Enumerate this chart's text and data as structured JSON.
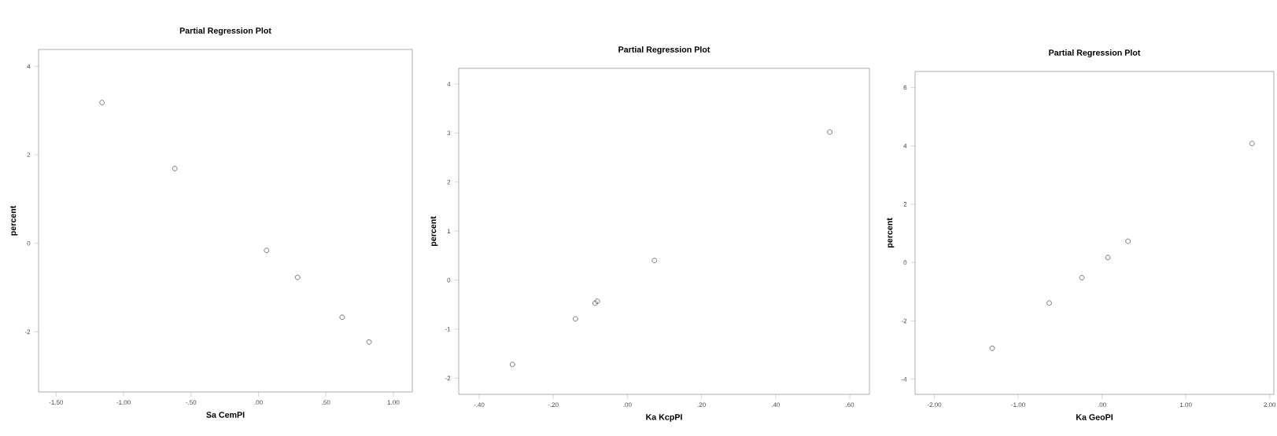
{
  "chart_data": [
    {
      "type": "scatter",
      "title": "Partial Regression Plot",
      "xlabel": "Sa CemPI",
      "ylabel": "percent",
      "marker": "circle",
      "color": "#555555",
      "x": [
        -1.16,
        -0.62,
        0.06,
        0.29,
        0.62,
        0.82
      ],
      "values": [
        3.18,
        1.69,
        -0.16,
        -0.77,
        -1.67,
        -2.23
      ],
      "xlim": [
        -1.63,
        1.14
      ],
      "ylim": [
        -3.36,
        4.38
      ],
      "xticks": [
        {
          "value": -1.5,
          "label": "-1.50"
        },
        {
          "value": -1.0,
          "label": "-1.00"
        },
        {
          "value": -0.5,
          "label": "-.50"
        },
        {
          "value": 0,
          "label": ".00"
        },
        {
          "value": 0.5,
          "label": ".50"
        },
        {
          "value": 1.0,
          "label": "1.00"
        }
      ],
      "yticks": [
        4,
        2,
        0,
        -2
      ]
    },
    {
      "type": "scatter",
      "title": "Partial Regression Plot",
      "xlabel": "Ka KcpPI",
      "ylabel": "percent",
      "marker": "circle",
      "color": "#555555",
      "x": [
        -0.31,
        -0.14,
        -0.087,
        -0.081,
        0.073,
        0.546
      ],
      "values": [
        -1.72,
        -0.79,
        -0.47,
        -0.43,
        0.4,
        3.02
      ],
      "xlim": [
        -0.455,
        0.653
      ],
      "ylim": [
        -2.33,
        4.32
      ],
      "xticks": [
        {
          "value": -0.4,
          "label": "-.40"
        },
        {
          "value": -0.2,
          "label": "-.20"
        },
        {
          "value": 0,
          "label": ".00"
        },
        {
          "value": 0.2,
          "label": ".20"
        },
        {
          "value": 0.4,
          "label": ".40"
        },
        {
          "value": 0.6,
          "label": ".60"
        }
      ],
      "yticks": [
        4,
        3,
        2,
        1,
        0,
        -1,
        -2
      ]
    },
    {
      "type": "scatter",
      "title": "Partial Regression Plot",
      "xlabel": "Ka GeoPI",
      "ylabel": "percent",
      "marker": "circle",
      "color": "#555555",
      "x": [
        -1.31,
        -0.63,
        -0.24,
        0.07,
        0.31,
        1.79
      ],
      "values": [
        -2.94,
        -1.39,
        -0.52,
        0.17,
        0.73,
        4.08
      ],
      "xlim": [
        -2.23,
        2.05
      ],
      "ylim": [
        -4.52,
        6.55
      ],
      "xticks": [
        {
          "value": -2.0,
          "label": "-2.00"
        },
        {
          "value": -1.0,
          "label": "-1.00"
        },
        {
          "value": 0,
          "label": ".00"
        },
        {
          "value": 1.0,
          "label": "1.00"
        },
        {
          "value": 2.0,
          "label": "2.00"
        }
      ],
      "yticks": [
        6,
        4,
        2,
        0,
        -2,
        -4
      ]
    }
  ]
}
